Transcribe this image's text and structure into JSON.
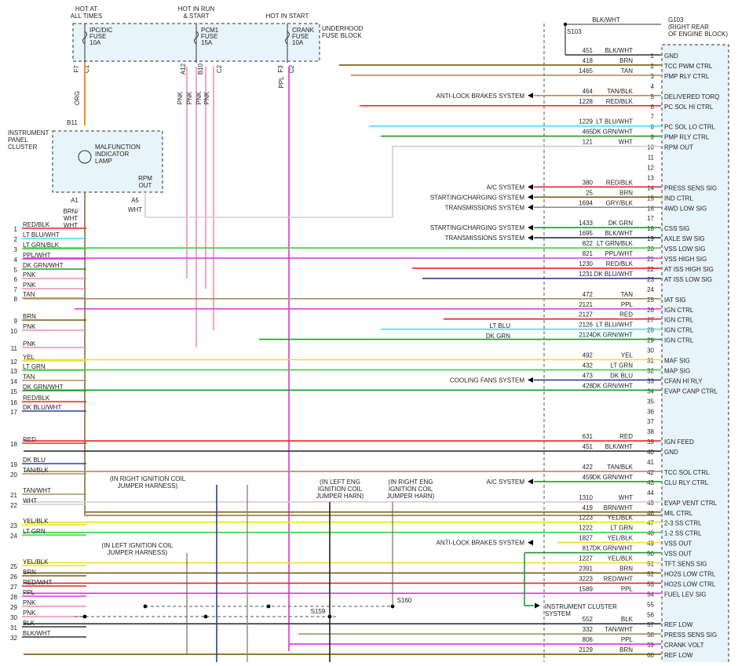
{
  "header": {
    "hot_always": [
      "HOT AT",
      "ALL TIMES"
    ],
    "hot_run_start": [
      "HOT IN RUN",
      "& START"
    ],
    "hot_start": [
      "HOT IN START"
    ],
    "fuse_block": [
      "UNDERHOOD",
      "FUSE BLOCK"
    ]
  },
  "fuses": [
    {
      "lines": [
        "IPC/DIC",
        "FUSE",
        "10A"
      ],
      "conn": [
        "F7",
        "C1"
      ]
    },
    {
      "lines": [
        "PCM1",
        "FUSE",
        "15A"
      ],
      "conn": [
        "A12",
        "B10",
        "C2"
      ]
    },
    {
      "lines": [
        "CRANK",
        "FUSE",
        "10A"
      ],
      "conn": [
        "F3",
        "C2"
      ]
    }
  ],
  "wire_labels": [
    "ORG",
    "PNK",
    "PNK",
    "PNK",
    "PNK",
    "PPL"
  ],
  "ground": {
    "color": "BLK/WHT",
    "id": "G103",
    "desc": [
      "(RIGHT REAR",
      "OF ENGINE BLOCK)"
    ],
    "splice": "S103"
  },
  "cluster": {
    "name": [
      "INSTRUMENT",
      "PANEL",
      "CLUSTER"
    ],
    "lamp": [
      "MALFUNCTION",
      "INDICATOR",
      "LAMP"
    ],
    "rpm": [
      "RPM",
      "OUT"
    ],
    "pins": [
      "B11",
      "A1",
      "A5"
    ],
    "wires": [
      "BRN/",
      "WHT",
      "WHT"
    ]
  },
  "right_pins": [
    {
      "pin": 1,
      "circuit": "451",
      "color": "BLK/WHT",
      "function": "GND"
    },
    {
      "pin": 2,
      "circuit": "418",
      "color": "BRN",
      "function": "TCC PWM CTRL"
    },
    {
      "pin": 3,
      "circuit": "1465",
      "color": "TAN",
      "function": "PMP RLY CTRL"
    },
    {
      "pin": 4
    },
    {
      "pin": 5,
      "circuit": "464",
      "color": "TAN/BLK",
      "function": "DELIVERED TORQ"
    },
    {
      "pin": 6,
      "circuit": "1228",
      "color": "RED/BLK",
      "function": "PC SOL HI CTRL"
    },
    {
      "pin": 7
    },
    {
      "pin": 8,
      "circuit": "1229",
      "color": "LT BLU/WHT",
      "function": "PC SOL LO CTRL"
    },
    {
      "pin": 9,
      "circuit": "465",
      "color": "DK GRN/WHT",
      "function": "PMP RLY CTRL"
    },
    {
      "pin": 10,
      "circuit": "121",
      "color": "WHT",
      "function": "RPM OUT"
    },
    {
      "pin": 11
    },
    {
      "pin": 12
    },
    {
      "pin": 13
    },
    {
      "pin": 14,
      "circuit": "380",
      "color": "RED/BLK",
      "function": "PRESS SENS SIG"
    },
    {
      "pin": 15,
      "circuit": "25",
      "color": "BRN",
      "function": "IND CTRL"
    },
    {
      "pin": 16,
      "circuit": "1694",
      "color": "GRY/BLK",
      "function": "4WD LOW SIG"
    },
    {
      "pin": 17
    },
    {
      "pin": 18,
      "circuit": "1433",
      "color": "DK GRN",
      "function": "CSS SIG"
    },
    {
      "pin": 19,
      "circuit": "1695",
      "color": "BLK/WHT",
      "function": "AXLE SW SIG"
    },
    {
      "pin": 20,
      "circuit": "822",
      "color": "LT GRN/BLK",
      "function": "VSS LOW SIG"
    },
    {
      "pin": 21,
      "circuit": "821",
      "color": "PPL/WHT",
      "function": "VSS HIGH SIG"
    },
    {
      "pin": 22,
      "circuit": "1230",
      "color": "RED/BLK",
      "function": "AT ISS HIGH SIG"
    },
    {
      "pin": 23,
      "circuit": "1231",
      "color": "DK BLU/WHT",
      "function": "AT ISS LOW SIG"
    },
    {
      "pin": 24
    },
    {
      "pin": 25,
      "circuit": "472",
      "color": "TAN",
      "function": "IAT SIG"
    },
    {
      "pin": 26,
      "circuit": "2121",
      "color": "PPL",
      "function": "IGN CTRL"
    },
    {
      "pin": 27,
      "circuit": "2127",
      "color": "RED",
      "function": "IGN CTRL"
    },
    {
      "pin": 28,
      "circuit": "2126",
      "color": "LT BLU/WHT",
      "function": "IGN CTRL"
    },
    {
      "pin": 29,
      "circuit": "2124",
      "color": "DK GRN/WHT",
      "function": "IGN CTRL"
    },
    {
      "pin": 30
    },
    {
      "pin": 31,
      "circuit": "492",
      "color": "YEL",
      "function": "MAF SIG"
    },
    {
      "pin": 32,
      "circuit": "432",
      "color": "LT GRN",
      "function": "MAP SIG"
    },
    {
      "pin": 33,
      "circuit": "473",
      "color": "DK BLU",
      "function": "CFAN HI RLY"
    },
    {
      "pin": 34,
      "circuit": "428",
      "color": "DK GRN/WHT",
      "function": "EVAP CANP CTRL"
    },
    {
      "pin": 35
    },
    {
      "pin": 36
    },
    {
      "pin": 37
    },
    {
      "pin": 38
    },
    {
      "pin": 39,
      "circuit": "631",
      "color": "RED",
      "function": "IGN FEED"
    },
    {
      "pin": 40,
      "circuit": "451",
      "color": "BLK/WHT",
      "function": "GND"
    },
    {
      "pin": 41
    },
    {
      "pin": 42,
      "circuit": "422",
      "color": "TAN/BLK",
      "function": "TCC SOL CTRL"
    },
    {
      "pin": 43,
      "circuit": "459",
      "color": "DK GRN/WHT",
      "function": "CLU RLY CTRL"
    },
    {
      "pin": 44
    },
    {
      "pin": 45,
      "circuit": "1310",
      "color": "WHT",
      "function": "EVAP VENT CTRL"
    },
    {
      "pin": 46,
      "circuit": "419",
      "color": "BRN/WHT",
      "function": "MIL CTRL"
    },
    {
      "pin": 47,
      "circuit": "1223",
      "color": "YEL/BLK",
      "function": "2-3 SS CTRL"
    },
    {
      "pin": 48,
      "circuit": "1222",
      "color": "LT GRN",
      "function": "1-2 SS CTRL"
    },
    {
      "pin": 49,
      "circuit": "1827",
      "color": "YEL/BLK",
      "function": "VSS OUT"
    },
    {
      "pin": 50,
      "circuit": "817",
      "color": "DK GRN/WHT",
      "function": "VSS OUT"
    },
    {
      "pin": 51,
      "circuit": "1227",
      "color": "YEL/BLK",
      "function": "TFT SENS SIG"
    },
    {
      "pin": 52,
      "circuit": "2391",
      "color": "BRN",
      "function": "HO2S LOW CTRL"
    },
    {
      "pin": 53,
      "circuit": "3223",
      "color": "RED/WHT",
      "function": "HO2S LOW CTRL"
    },
    {
      "pin": 54,
      "circuit": "1589",
      "color": "PPL",
      "function": "FUEL LEV SIG"
    },
    {
      "pin": 55
    },
    {
      "pin": 56
    },
    {
      "pin": 57,
      "circuit": "552",
      "color": "BLK",
      "function": "REF LOW"
    },
    {
      "pin": 58,
      "circuit": "332",
      "color": "TAN/WHT",
      "function": "PRESS SENS SIG"
    },
    {
      "pin": 59,
      "circuit": "806",
      "color": "PPL",
      "function": "CRANK VOLT"
    },
    {
      "pin": 60,
      "circuit": "2129",
      "color": "BRN",
      "function": "REF LOW"
    }
  ],
  "left_pins": [
    {
      "pin": 1,
      "color": "RED/BLK"
    },
    {
      "pin": 2,
      "color": "LT BLU/WHT"
    },
    {
      "pin": 3,
      "color": "LT GRN/BLK"
    },
    {
      "pin": 4,
      "color": "PPL/WHT"
    },
    {
      "pin": 5,
      "color": "DK GRN/WHT"
    },
    {
      "pin": 6,
      "color": "PNK"
    },
    {
      "pin": 7,
      "color": "PNK"
    },
    {
      "pin": 8,
      "color": "TAN"
    },
    {
      "pin": 9,
      "color": "BRN"
    },
    {
      "pin": 10,
      "color": "PNK"
    },
    {
      "pin": 11,
      "color": "PNK"
    },
    {
      "pin": 12,
      "color": "YEL"
    },
    {
      "pin": 13,
      "color": "LT GRN"
    },
    {
      "pin": 14,
      "color": "TAN"
    },
    {
      "pin": 15,
      "color": "DK GRN/WHT"
    },
    {
      "pin": 16,
      "color": "RED/BLK"
    },
    {
      "pin": 17,
      "color": "DK BLU/WHT"
    },
    {
      "pin": 18,
      "color": "RED"
    },
    {
      "pin": 19,
      "color": "DK BLU"
    },
    {
      "pin": 20,
      "color": "TAN/BLK"
    },
    {
      "pin": 21,
      "color": "TAN/WHT"
    },
    {
      "pin": 22,
      "color": "WHT"
    },
    {
      "pin": 23,
      "color": "YEL/BLK"
    },
    {
      "pin": 24,
      "color": "LT GRN"
    },
    {
      "pin": 25,
      "color": "YEL/BLK"
    },
    {
      "pin": 26,
      "color": "BRN"
    },
    {
      "pin": 27,
      "color": "RED/WHT"
    },
    {
      "pin": 28,
      "color": "PPL"
    },
    {
      "pin": 29,
      "color": "PNK"
    },
    {
      "pin": 30,
      "color": "PNK"
    },
    {
      "pin": 31,
      "color": "BLK"
    },
    {
      "pin": 32,
      "color": "BLK/WHT"
    }
  ],
  "systems": [
    "ANTI-LOCK BRAKES SYSTEM",
    "A/C SYSTEM",
    "STARTING/CHARGING SYSTEM",
    "TRANSMISSIONS SYSTEM",
    "STARTING/CHARGING SYSTEM",
    "TRANSMISSIONS SYSTEM",
    "COOLING FANS SYSTEM",
    "A/C SYSTEM",
    "ANTI-LOCK BRAKES SYSTEM"
  ],
  "instrument_cluster": [
    "INSTRUMENT CLUSTER",
    "SYSTEM"
  ],
  "inline_labels": [
    "LT BLU",
    "DK GRN"
  ],
  "notes": [
    [
      "(IN RIGHT IGNITION COIL",
      "JUMPER HARNESS)"
    ],
    [
      "(IN LEFT ENG",
      "IGNITION COIL",
      "JUMPER HARN)"
    ],
    [
      "(IN RIGHT ENG",
      "IGNITION COIL",
      "JUMPER HARN)"
    ],
    [
      "(IN LEFT IGNITION COIL",
      "JUMPER HARNESS)"
    ]
  ],
  "splices": [
    "S159",
    "S160"
  ]
}
